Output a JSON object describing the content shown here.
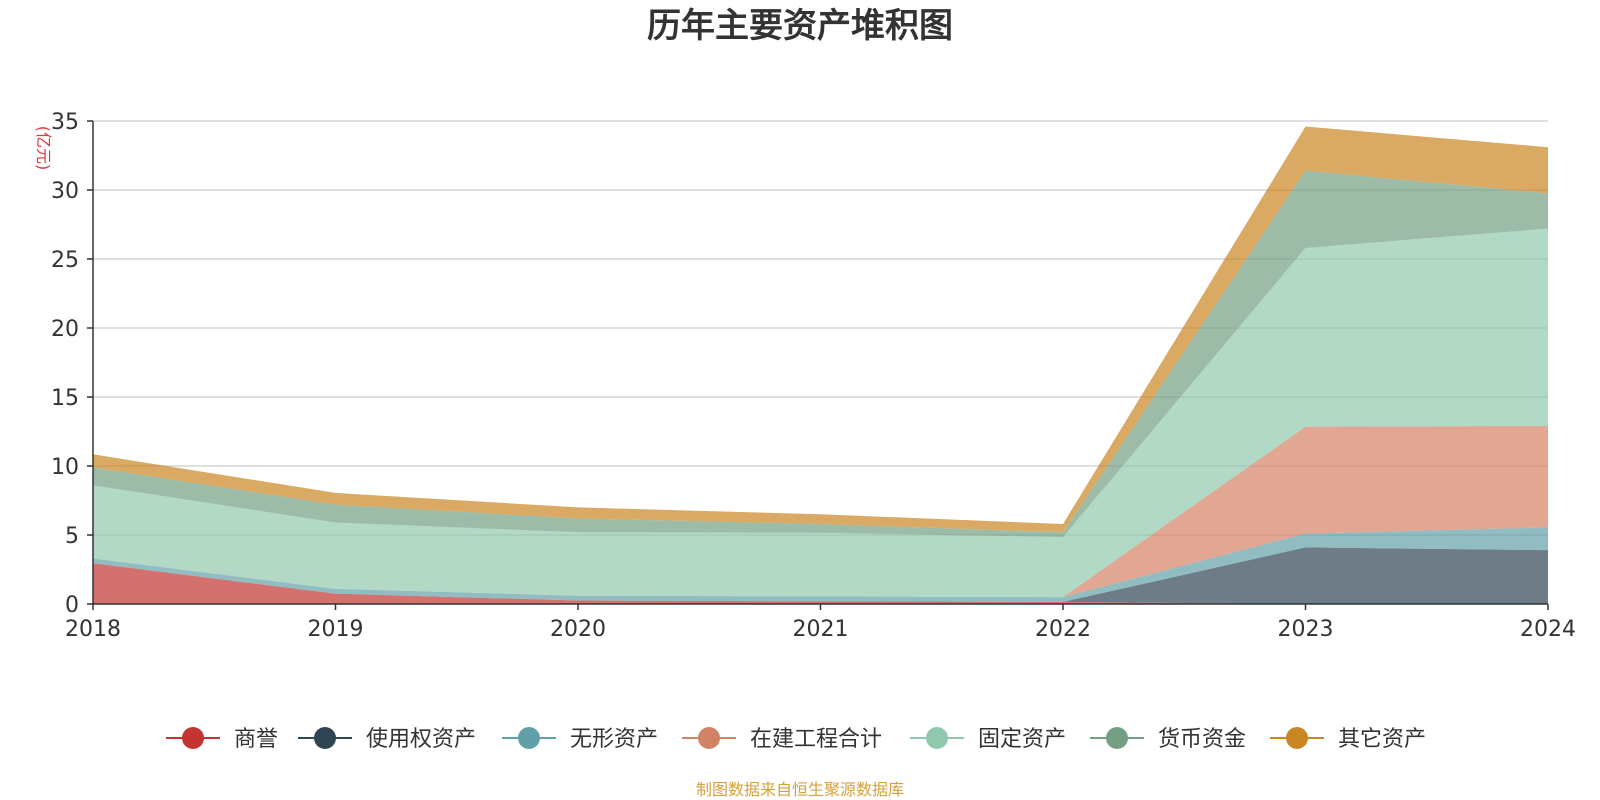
{
  "chart_data": {
    "type": "area",
    "stacked": true,
    "title": "历年主要资产堆积图",
    "unit_label": "(亿元)",
    "x": [
      "2018",
      "2019",
      "2020",
      "2021",
      "2022",
      "2023",
      "2024"
    ],
    "ylim": [
      0,
      35
    ],
    "yticks": [
      0,
      5,
      10,
      15,
      20,
      25,
      30,
      35
    ],
    "grid": true,
    "legend_position": "bottom",
    "series": [
      {
        "name": "商誉",
        "color": "#c23531",
        "values": [
          2.95,
          0.75,
          0.25,
          0.2,
          0.15,
          0.0,
          0.0
        ]
      },
      {
        "name": "使用权资产",
        "color": "#2f4554",
        "values": [
          0.0,
          0.0,
          0.0,
          0.0,
          0.0,
          4.1,
          3.9
        ]
      },
      {
        "name": "无形资产",
        "color": "#61a0a8",
        "values": [
          0.35,
          0.35,
          0.35,
          0.35,
          0.35,
          1.0,
          1.65
        ]
      },
      {
        "name": "在建工程合计",
        "color": "#d48265",
        "values": [
          0.0,
          0.0,
          0.0,
          0.0,
          0.0,
          7.75,
          7.35
        ]
      },
      {
        "name": "固定资产",
        "color": "#91c7ae",
        "values": [
          5.3,
          4.8,
          4.6,
          4.6,
          4.35,
          12.95,
          14.3
        ]
      },
      {
        "name": "货币资金",
        "color": "#749f83",
        "values": [
          1.3,
          1.3,
          1.0,
          0.65,
          0.35,
          5.6,
          2.55
        ]
      },
      {
        "name": "其它资产",
        "color": "#ca8622",
        "values": [
          0.95,
          0.85,
          0.8,
          0.7,
          0.6,
          3.2,
          3.35
        ]
      }
    ]
  },
  "footer": {
    "source": "制图数据来自恒生聚源数据库"
  }
}
